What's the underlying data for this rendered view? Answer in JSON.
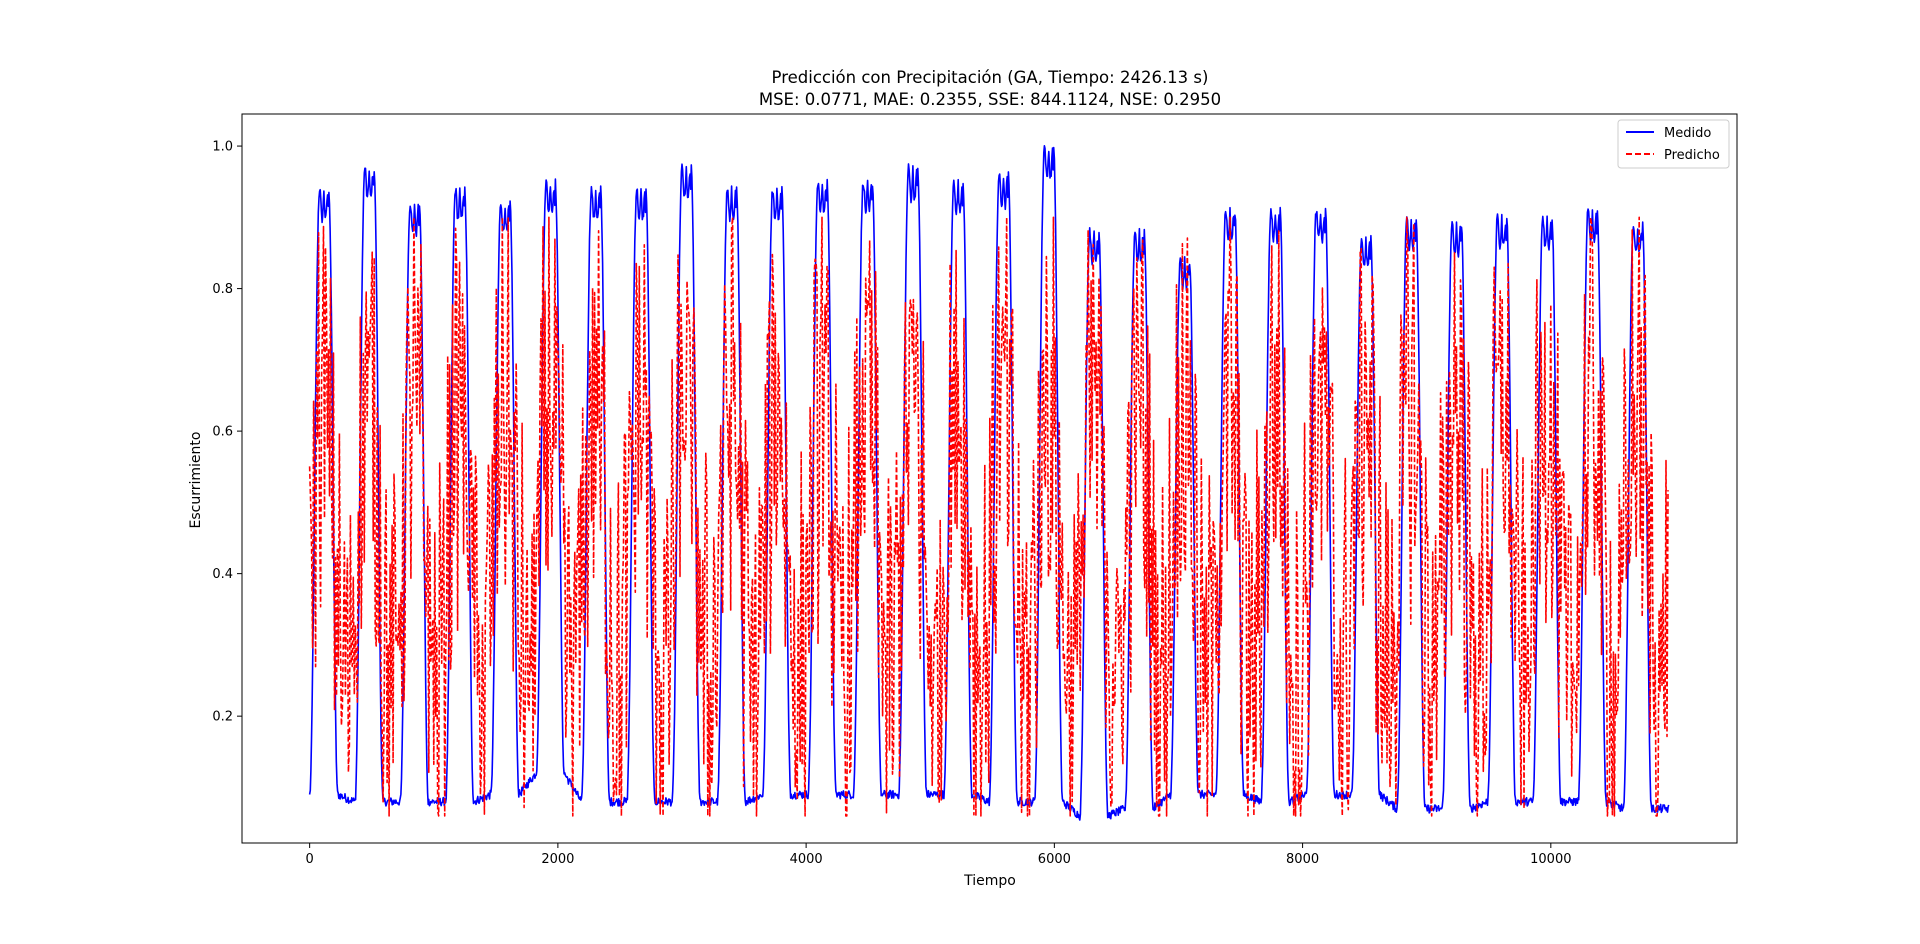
{
  "chart_data": {
    "type": "line",
    "title": "Predicción con Precipitación (GA, Tiempo: 2426.13 s)",
    "subtitle": "MSE: 0.0771, MAE: 0.2355, SSE: 844.1124, NSE: 0.2950",
    "xlabel": "Tiempo",
    "ylabel": "Escurrimiento",
    "xlim": [
      -545,
      11500
    ],
    "ylim": [
      0.022,
      1.045
    ],
    "xticks": [
      0,
      2000,
      4000,
      6000,
      8000,
      10000
    ],
    "xtick_labels": [
      "0",
      "2000",
      "4000",
      "6000",
      "8000",
      "10000"
    ],
    "yticks": [
      0.2,
      0.4,
      0.6,
      0.8,
      1.0
    ],
    "ytick_labels": [
      "0.2",
      "0.4",
      "0.6",
      "0.8",
      "1.0"
    ],
    "grid": false,
    "legend_position": "top-right",
    "x_range": [
      0,
      10950
    ],
    "series": [
      {
        "name": "Medido",
        "color": "#0000ff",
        "style": "solid",
        "cycle_length": 365,
        "peaks": [
          0.94,
          0.97,
          0.92,
          0.94,
          0.92,
          0.95,
          0.94,
          0.94,
          0.97,
          0.94,
          0.94,
          0.95,
          0.95,
          0.97,
          0.95,
          0.96,
          1.0,
          0.88,
          0.88,
          0.84,
          0.91,
          0.91,
          0.91,
          0.87,
          0.9,
          0.89,
          0.9,
          0.9,
          0.91,
          0.89
        ],
        "troughs": [
          0.09,
          0.08,
          0.08,
          0.08,
          0.09,
          0.12,
          0.08,
          0.08,
          0.08,
          0.08,
          0.09,
          0.09,
          0.09,
          0.09,
          0.09,
          0.08,
          0.08,
          0.06,
          0.07,
          0.09,
          0.09,
          0.08,
          0.09,
          0.09,
          0.07,
          0.07,
          0.08,
          0.08,
          0.08,
          0.07
        ]
      },
      {
        "name": "Predicho",
        "color": "#ff0000",
        "style": "dashed",
        "cycle_length": 365,
        "y_min": 0.06,
        "y_max": 0.9
      }
    ]
  }
}
